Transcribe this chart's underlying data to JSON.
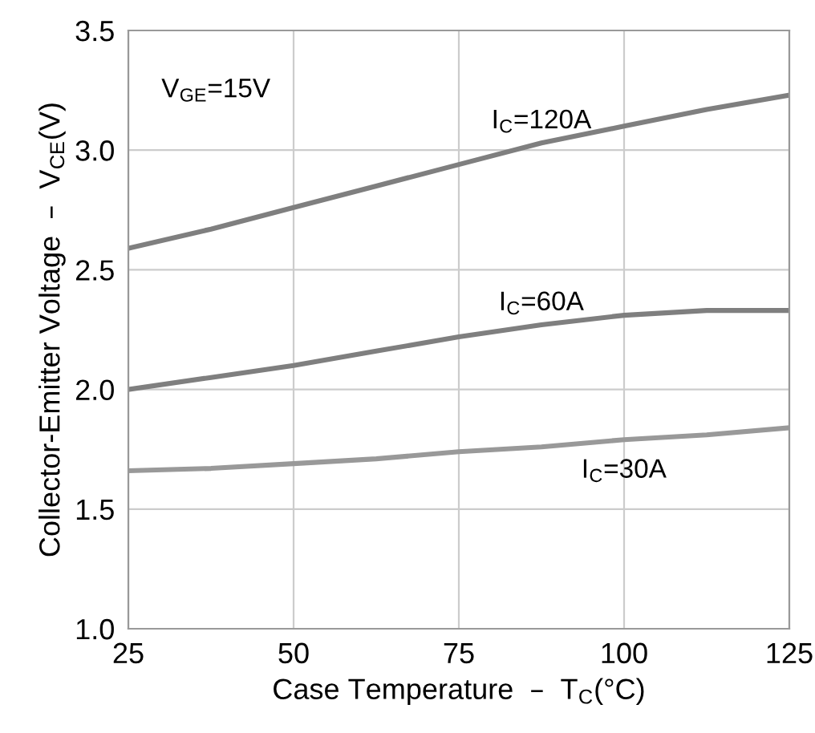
{
  "chart_data": {
    "type": "line",
    "xlabel": "Case Temperature  –  T$_{C}$(°C)",
    "ylabel": "Collector-Emitter Voltage  –  V$_{CE}$(V)",
    "x": [
      25,
      37.5,
      50,
      62.5,
      75,
      87.5,
      100,
      112.5,
      125
    ],
    "series": [
      {
        "name": "I$_{C}$=120A",
        "color": "#7f7f7f",
        "values": [
          2.59,
          2.67,
          2.76,
          2.85,
          2.94,
          3.03,
          3.1,
          3.17,
          3.23
        ]
      },
      {
        "name": "I$_{C}$=60A",
        "color": "#7f7f7f",
        "values": [
          2.0,
          2.05,
          2.1,
          2.16,
          2.22,
          2.27,
          2.31,
          2.33,
          2.33
        ]
      },
      {
        "name": "I$_{C}$=30A",
        "color": "#999999",
        "values": [
          1.66,
          1.67,
          1.69,
          1.71,
          1.74,
          1.76,
          1.79,
          1.81,
          1.84
        ]
      }
    ],
    "annotations": [
      "V$_{GE}$=15V"
    ],
    "xlim": [
      25,
      125
    ],
    "xticks": [
      25,
      50,
      75,
      100,
      125
    ],
    "ylim": [
      1.0,
      3.5
    ],
    "yticks": [
      {
        "value": 1,
        "label": "1.0"
      },
      1.5,
      {
        "value": 2,
        "label": "2.0"
      },
      2.5,
      {
        "value": 3,
        "label": "3.0"
      },
      3.5
    ],
    "grid": true,
    "legend": false,
    "marker": "none",
    "line_style": "solid"
  }
}
